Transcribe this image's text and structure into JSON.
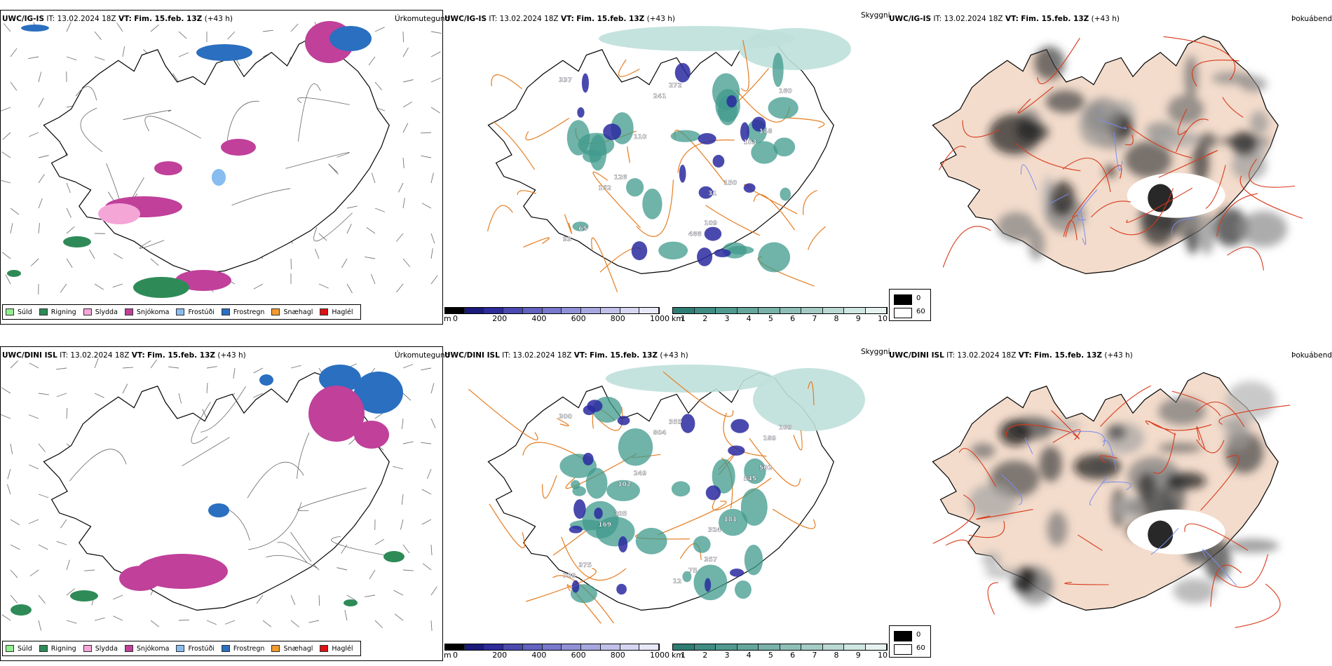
{
  "rows": [
    {
      "model": "UWC/IG-IS",
      "it_label": "IT:",
      "it_value": "13.02.2024 18Z",
      "vt_label": "VT:",
      "vt_value": "Fim. 15.feb. 13Z",
      "lead": "(+43 h)",
      "precip_title": "Úrkomutegund",
      "vis_title": "Skyggni",
      "fog_title": "Þokuábendi",
      "vis_values": [
        "337",
        "109",
        "126",
        "148",
        "272",
        "65",
        "150",
        "110",
        "160",
        "488",
        "162",
        "103",
        "241",
        "93",
        "31"
      ]
    },
    {
      "model": "UWC/DINI ISL",
      "it_label": "IT:",
      "it_value": "13.02.2024 18Z",
      "vt_label": "VT:",
      "vt_value": "Fim. 15.feb. 13Z",
      "lead": "(+43 h)",
      "precip_title": "Úrkomutegund",
      "vis_title": "Skyggni",
      "fog_title": "Þokuábendi",
      "vis_values": [
        "300",
        "357",
        "305",
        "502",
        "359",
        "375",
        "181",
        "249",
        "109",
        "75",
        "169",
        "545",
        "804",
        "709",
        "324",
        "102",
        "189",
        "12"
      ]
    }
  ],
  "precip_legend": [
    {
      "label": "Súld",
      "color": "#90ee90"
    },
    {
      "label": "Rigning",
      "color": "#2e8b57"
    },
    {
      "label": "Slydda",
      "color": "#f4a6d7"
    },
    {
      "label": "Snjókoma",
      "color": "#c0409a"
    },
    {
      "label": "Frostúði",
      "color": "#87bdf0"
    },
    {
      "label": "Frostregn",
      "color": "#2a6fc0"
    },
    {
      "label": "Snæhagl",
      "color": "#f29a2e"
    },
    {
      "label": "Haglél",
      "color": "#e01010"
    }
  ],
  "height_bar": {
    "unit": "m",
    "ticks": [
      "0",
      "200",
      "400",
      "600",
      "800",
      "1000"
    ],
    "colors": [
      "#000000",
      "#1a1a7a",
      "#2b2b9a",
      "#4a4ab0",
      "#6262c0",
      "#7878cc",
      "#9090d8",
      "#a8a8e0",
      "#c0c0ea",
      "#d6d6f2",
      "#e8e8f8"
    ]
  },
  "km_bar": {
    "unit": "km",
    "ticks": [
      "1",
      "2",
      "3",
      "4",
      "5",
      "6",
      "7",
      "8",
      "9",
      "10"
    ],
    "colors": [
      "#2e7d74",
      "#3e8c83",
      "#50998f",
      "#64a69c",
      "#78b2a9",
      "#8ebfb7",
      "#a4ccc5",
      "#bad9d3",
      "#d0e6e1",
      "#e6f2f0"
    ]
  },
  "fog_legend": {
    "items": [
      {
        "label": "0",
        "color": "#000000"
      },
      {
        "label": "60",
        "color": "#ffffff"
      }
    ]
  },
  "colors": {
    "coast": "#000000",
    "roads_orange": "#e57c1f",
    "roads_red": "#d9391a",
    "land_fog": "#f3dccc",
    "vis_teal": "#3f9a8c",
    "vis_blue": "#2a2aa0"
  }
}
